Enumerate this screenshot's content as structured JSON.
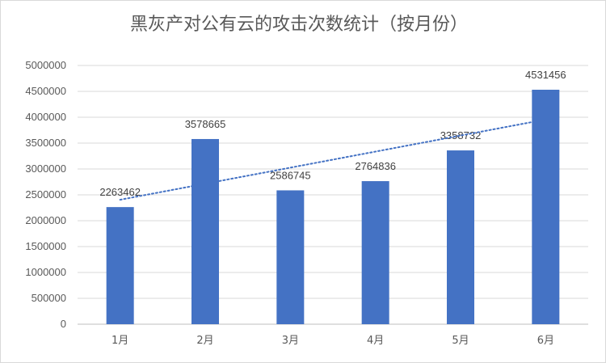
{
  "chart_data": {
    "type": "bar",
    "title": "黑灰产对公有云的攻击次数统计（按月份）",
    "categories": [
      "1月",
      "2月",
      "3月",
      "4月",
      "5月",
      "6月"
    ],
    "values": [
      2263462,
      3578665,
      2586745,
      2764836,
      3358732,
      4531456
    ],
    "data_labels": [
      "2263462",
      "3578665",
      "2586745",
      "2764836",
      "3358732",
      "4531456"
    ],
    "yticks": [
      0,
      500000,
      1000000,
      1500000,
      2000000,
      2500000,
      3000000,
      3500000,
      4000000,
      4500000,
      5000000
    ],
    "ylim": [
      0,
      5000000
    ],
    "xlabel": "",
    "ylabel": "",
    "grid": true,
    "trendline": "linear",
    "legend": "none",
    "colors": {
      "bar": "#4472C4",
      "trendline": "#4472C4",
      "grid": "#d9d9d9"
    }
  }
}
